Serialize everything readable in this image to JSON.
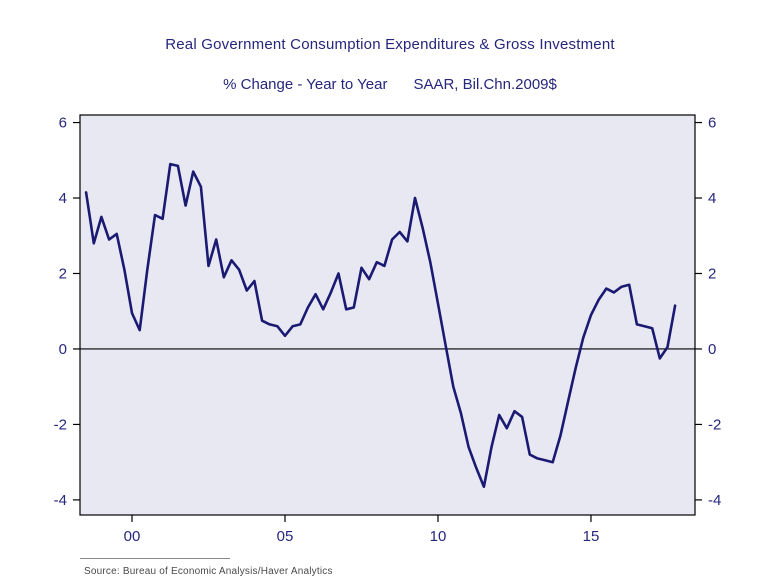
{
  "header": {
    "title": "Real Government Consumption Expenditures & Gross Investment",
    "subtitle_left": "% Change - Year to Year",
    "subtitle_right": "SAAR, Bil.Chn.2009$"
  },
  "footer": {
    "source": "Source:  Bureau of Economic Analysis/Haver Analytics"
  },
  "chart_data": {
    "type": "line",
    "title": "Real Government Consumption Expenditures & Gross Investment",
    "subtitle": "% Change - Year to Year    SAAR, Bil.Chn.2009$",
    "xlabel": "",
    "ylabel": "% Change - Year to Year",
    "units": "SAAR, Bil.Chn.2009$",
    "grid": false,
    "zero_line": true,
    "legend_position": "none",
    "xlim": [
      1998.3,
      2018.4
    ],
    "ylim": [
      -4.4,
      6.2
    ],
    "y_ticks": [
      -4,
      -2,
      0,
      2,
      4,
      6
    ],
    "x_tick_values": [
      2000,
      2005,
      2010,
      2015
    ],
    "x_tick_labels": [
      "00",
      "05",
      "10",
      "15"
    ],
    "colors": {
      "line": "#1a1a72",
      "plot_bg": "#e8e8f3",
      "text": "#26267d",
      "axis": "#000000"
    },
    "series": [
      {
        "name": "Real Government Consumption Expenditures & Gross Investment (% chg y/y)",
        "x_start": 1998.5,
        "x_step": 0.25,
        "values": [
          4.15,
          2.8,
          3.5,
          2.9,
          3.05,
          2.1,
          0.95,
          0.5,
          2.1,
          3.55,
          3.45,
          4.9,
          4.85,
          3.8,
          4.7,
          4.3,
          2.2,
          2.9,
          1.9,
          2.35,
          2.1,
          1.55,
          1.8,
          0.75,
          0.65,
          0.6,
          0.35,
          0.6,
          0.65,
          1.1,
          1.45,
          1.05,
          1.5,
          2.0,
          1.05,
          1.1,
          2.15,
          1.85,
          2.3,
          2.2,
          2.9,
          3.1,
          2.85,
          4.0,
          3.2,
          2.3,
          1.2,
          0.1,
          -1.0,
          -1.7,
          -2.6,
          -3.15,
          -3.65,
          -2.6,
          -1.75,
          -2.1,
          -1.65,
          -1.8,
          -2.8,
          -2.9,
          -2.95,
          -3.0,
          -2.3,
          -1.4,
          -0.5,
          0.3,
          0.9,
          1.3,
          1.6,
          1.5,
          1.65,
          1.7,
          0.65,
          0.6,
          0.55,
          -0.25,
          0.05,
          1.15
        ]
      }
    ]
  }
}
